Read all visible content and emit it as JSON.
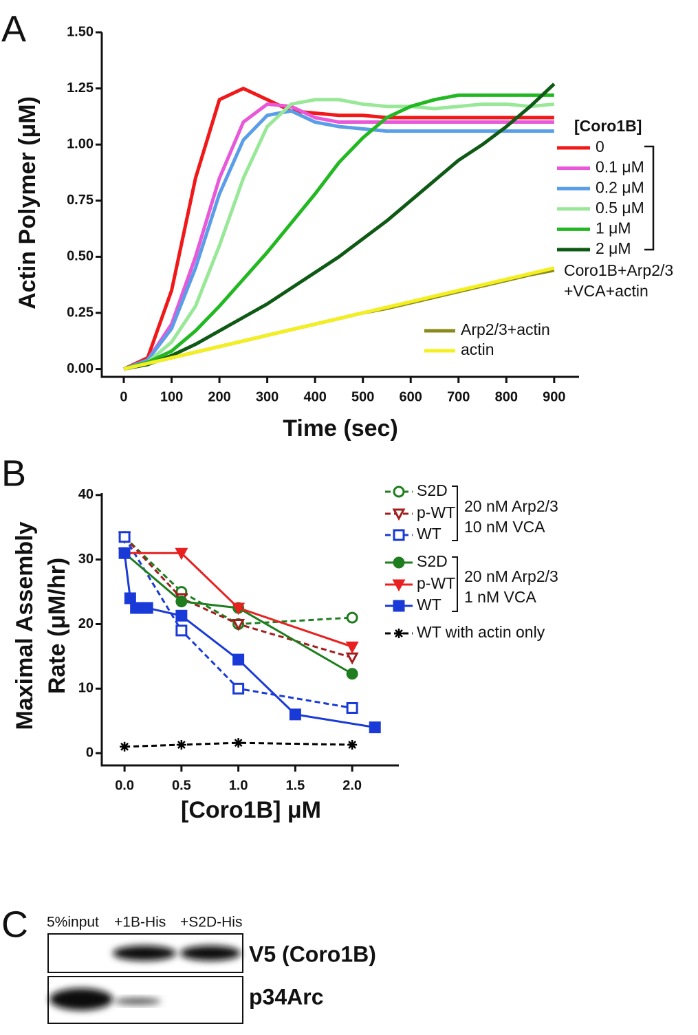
{
  "chart_data": [
    {
      "type": "line",
      "panel": "A",
      "xlabel": "Time (sec)",
      "ylabel": "Actin Polymer (μM)",
      "legend_title": "[Coro1B]",
      "annotations": [
        "Coro1B+Arp2/3",
        "+VCA+actin"
      ],
      "xlim": [
        -46,
        952
      ],
      "ylim": [
        -0.035,
        1.5
      ],
      "xticks": [
        0,
        100,
        200,
        300,
        400,
        500,
        600,
        700,
        800,
        900
      ],
      "yticks": [
        {
          "value": 0,
          "label": "0.00"
        },
        {
          "value": 0.25,
          "label": "0.25"
        },
        {
          "value": 0.5,
          "label": "0.50"
        },
        {
          "value": 0.75,
          "label": "0.75"
        },
        {
          "value": 1,
          "label": "1.00"
        },
        {
          "value": 1.25,
          "label": "1.25"
        },
        {
          "value": 1.5,
          "label": "1.50"
        }
      ],
      "x": [
        0,
        50,
        100,
        150,
        200,
        250,
        300,
        350,
        400,
        450,
        500,
        550,
        600,
        650,
        700,
        750,
        800,
        850,
        900
      ],
      "series": [
        {
          "name": "0",
          "color": "#f01818",
          "values": [
            0,
            0.05,
            0.35,
            0.85,
            1.2,
            1.25,
            1.2,
            1.15,
            1.14,
            1.13,
            1.13,
            1.12,
            1.12,
            1.12,
            1.12,
            1.12,
            1.12,
            1.12,
            1.12
          ]
        },
        {
          "name": "0.1 μM",
          "color": "#e858d8",
          "values": [
            0,
            0.04,
            0.2,
            0.5,
            0.85,
            1.1,
            1.18,
            1.17,
            1.12,
            1.1,
            1.1,
            1.1,
            1.1,
            1.1,
            1.1,
            1.1,
            1.1,
            1.1,
            1.1
          ]
        },
        {
          "name": "0.2 μM",
          "color": "#5a9ee8",
          "values": [
            0,
            0.04,
            0.18,
            0.45,
            0.78,
            1.02,
            1.13,
            1.15,
            1.1,
            1.08,
            1.07,
            1.06,
            1.06,
            1.06,
            1.06,
            1.06,
            1.06,
            1.06,
            1.06
          ]
        },
        {
          "name": "0.5 μM",
          "color": "#98e898",
          "values": [
            0,
            0.03,
            0.12,
            0.28,
            0.55,
            0.85,
            1.08,
            1.18,
            1.2,
            1.2,
            1.18,
            1.17,
            1.17,
            1.16,
            1.17,
            1.18,
            1.18,
            1.17,
            1.18
          ]
        },
        {
          "name": "1 μM",
          "color": "#22b822",
          "values": [
            0,
            0.03,
            0.08,
            0.17,
            0.28,
            0.4,
            0.52,
            0.65,
            0.78,
            0.92,
            1.03,
            1.12,
            1.17,
            1.2,
            1.22,
            1.22,
            1.22,
            1.22,
            1.22
          ]
        },
        {
          "name": "2 μM",
          "color": "#0e5a14",
          "values": [
            0,
            0.02,
            0.06,
            0.11,
            0.17,
            0.23,
            0.29,
            0.36,
            0.43,
            0.5,
            0.58,
            0.66,
            0.75,
            0.84,
            0.93,
            1.0,
            1.08,
            1.17,
            1.27
          ]
        },
        {
          "name": "Arp2/3+actin",
          "color": "#8a8a1a",
          "values": [
            0,
            0.025,
            0.05,
            0.075,
            0.1,
            0.125,
            0.15,
            0.175,
            0.2,
            0.225,
            0.25,
            0.27,
            0.295,
            0.32,
            0.345,
            0.37,
            0.395,
            0.42,
            0.44
          ]
        },
        {
          "name": "actin",
          "color": "#f4f020",
          "values": [
            0,
            0.025,
            0.05,
            0.075,
            0.1,
            0.125,
            0.15,
            0.175,
            0.2,
            0.225,
            0.25,
            0.275,
            0.3,
            0.325,
            0.35,
            0.375,
            0.4,
            0.425,
            0.45
          ]
        }
      ]
    },
    {
      "type": "line",
      "panel": "B",
      "xlabel": "[Coro1B] μM",
      "ylabel": [
        "Maximal Assembly",
        "Rate (μM/hr)"
      ],
      "groups": [
        [
          "20 nM Arp2/3",
          "10 nM VCA"
        ],
        [
          "20 nM Arp2/3",
          "1 nM VCA"
        ]
      ],
      "xlim": [
        -0.2,
        2.41
      ],
      "ylim": [
        -1.9,
        40.3
      ],
      "xticks": [
        {
          "value": 0,
          "label": "0.0"
        },
        {
          "value": 0.5,
          "label": "0.5"
        },
        {
          "value": 1,
          "label": "1.0"
        },
        {
          "value": 1.5,
          "label": "1.5"
        },
        {
          "value": 2,
          "label": "2.0"
        }
      ],
      "yticks": [
        0,
        10,
        20,
        30,
        40
      ],
      "series": [
        {
          "name": "S2D",
          "color": "#1e7d1e",
          "marker": "circle",
          "filled": false,
          "dashed": true,
          "x": [
            0,
            0.5,
            1,
            2
          ],
          "values": [
            33.5,
            25,
            20,
            21
          ]
        },
        {
          "name": "p-WT",
          "color": "#a01e1e",
          "marker": "triangle",
          "filled": false,
          "dashed": true,
          "x": [
            0,
            0.5,
            1,
            2
          ],
          "values": [
            33.5,
            24,
            20,
            14.8
          ]
        },
        {
          "name": "WT",
          "color": "#1a3ad8",
          "marker": "square",
          "filled": false,
          "dashed": true,
          "x": [
            0,
            0.5,
            1,
            2
          ],
          "values": [
            33.5,
            19,
            10,
            7
          ]
        },
        {
          "name": "S2D",
          "color": "#1e7d1e",
          "marker": "circle",
          "filled": true,
          "dashed": false,
          "x": [
            0,
            0.5,
            1,
            2
          ],
          "values": [
            31,
            23.5,
            22.5,
            12.3
          ]
        },
        {
          "name": "p-WT",
          "color": "#e82020",
          "marker": "triangle",
          "filled": true,
          "dashed": false,
          "x": [
            0,
            0.5,
            1,
            2
          ],
          "values": [
            31,
            31,
            22.5,
            16.5
          ]
        },
        {
          "name": "WT",
          "color": "#1a3ad8",
          "marker": "square",
          "filled": true,
          "dashed": false,
          "x": [
            0,
            0.05,
            0.1,
            0.15,
            0.2,
            0.5,
            1,
            1.5,
            2.2
          ],
          "values": [
            31,
            24,
            22.5,
            22.5,
            22.5,
            21.3,
            14.5,
            6,
            4
          ]
        },
        {
          "name": "WT with actin only",
          "color": "#000000",
          "marker": "star",
          "filled": true,
          "dashed": true,
          "x": [
            0,
            0.5,
            1,
            2
          ],
          "values": [
            1,
            1.3,
            1.6,
            1.3
          ]
        }
      ]
    }
  ],
  "panel_c": {
    "panel": "C",
    "columns": [
      "5%input",
      "+1B-His",
      "+S2D-His"
    ],
    "rows": [
      "V5 (Coro1B)",
      "p34Arc"
    ]
  }
}
